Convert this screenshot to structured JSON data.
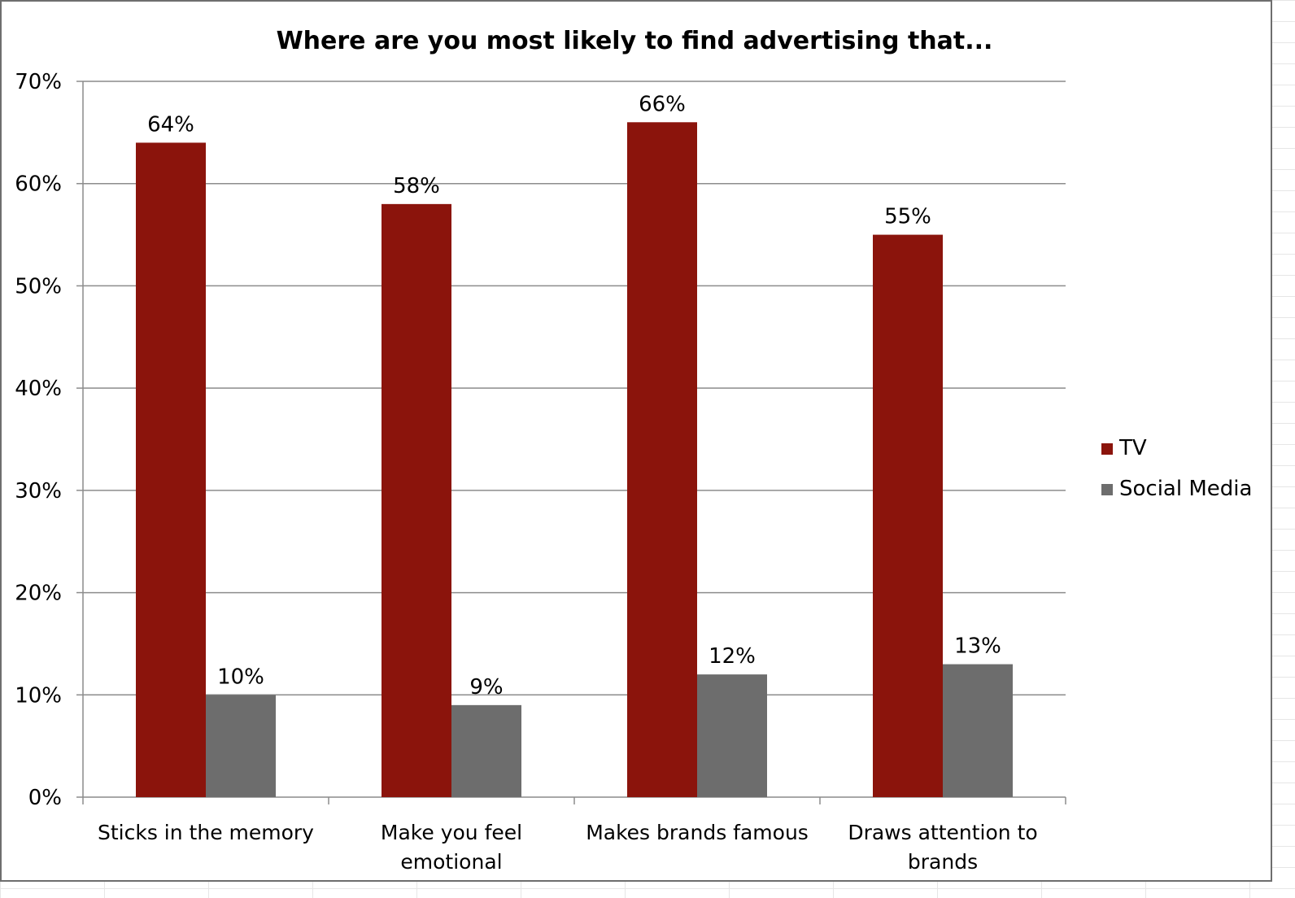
{
  "chart_data": {
    "type": "bar",
    "title": "Where are you most likely to find advertising that...",
    "categories": [
      [
        "Sticks in the memory"
      ],
      [
        "Make you feel",
        "emotional"
      ],
      [
        "Makes brands famous"
      ],
      [
        "Draws attention to",
        "brands"
      ]
    ],
    "series": [
      {
        "name": "TV",
        "color": "#8b140c",
        "values": [
          64,
          58,
          66,
          55
        ],
        "labels": [
          "64%",
          "58%",
          "66%",
          "55%"
        ]
      },
      {
        "name": "Social Media",
        "color": "#6d6d6d",
        "values": [
          10,
          9,
          12,
          13
        ],
        "labels": [
          "10%",
          "9%",
          "12%",
          "13%"
        ]
      }
    ],
    "ylim": [
      0,
      70
    ],
    "yticks": [
      0,
      10,
      20,
      30,
      40,
      50,
      60,
      70
    ],
    "ytick_labels": [
      "0%",
      "10%",
      "20%",
      "30%",
      "40%",
      "50%",
      "60%",
      "70%"
    ],
    "xlabel": "",
    "ylabel": "",
    "grid": true,
    "legend_position": "right"
  }
}
